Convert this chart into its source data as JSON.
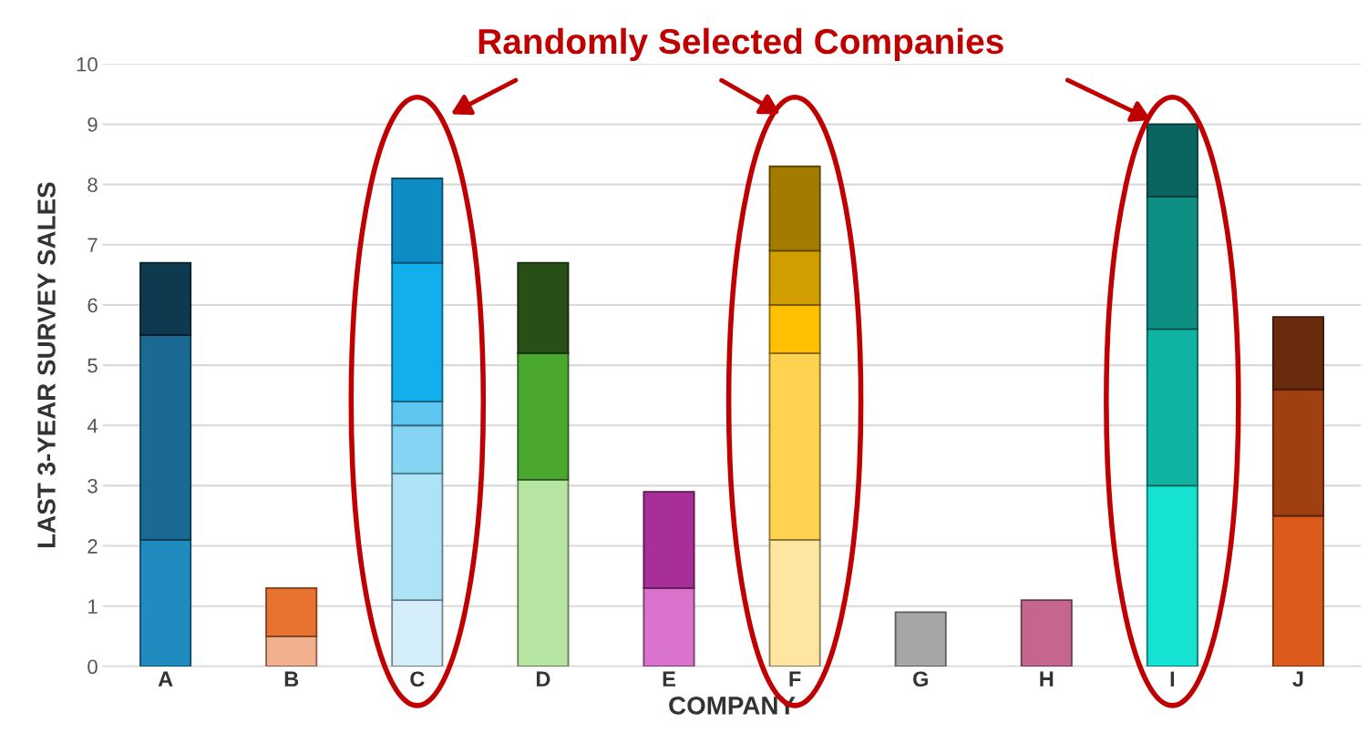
{
  "chart_data": {
    "type": "bar",
    "stacked": true,
    "xlabel": "COMPANY",
    "ylabel": "LAST 3-YEAR SURVEY SALES",
    "annotations": [
      "Randomly Selected Companies"
    ],
    "categories": [
      "A",
      "B",
      "C",
      "D",
      "E",
      "F",
      "G",
      "H",
      "I",
      "J"
    ],
    "ylim": [
      0,
      10
    ],
    "yticks": [
      0,
      1,
      2,
      3,
      4,
      5,
      6,
      7,
      8,
      9,
      10
    ],
    "grid": "y",
    "legend": false,
    "series": [
      {
        "values": [
          2.1,
          0.5,
          1.1,
          3.1,
          1.3,
          2.1,
          0.9,
          1.1,
          3.0,
          2.5
        ],
        "colors": [
          "#1f8bbf",
          "#f2b08f",
          "#d4eefa",
          "#b5e5a0",
          "#da73cb",
          "#fee6a0",
          "#a6a6a6",
          "#c4668d",
          "#16e2d2",
          "#db5a1c"
        ]
      },
      {
        "values": [
          3.4,
          0.8,
          2.1,
          2.1,
          1.6,
          3.1,
          null,
          null,
          2.6,
          2.1
        ],
        "colors": [
          "#1a6a93",
          "#e87330",
          "#aee2f7",
          "#4ba82f",
          "#a82f98",
          "#ffd350",
          null,
          null,
          "#10b2a2",
          "#a04010"
        ]
      },
      {
        "values": [
          1.2,
          null,
          0.8,
          1.5,
          null,
          0.8,
          null,
          null,
          2.2,
          1.2
        ],
        "colors": [
          "#0d3a4f",
          null,
          "#86d4f3",
          "#284f16",
          null,
          "#ffc000",
          null,
          null,
          "#0e8f84",
          "#6a2a0c"
        ]
      },
      {
        "values": [
          null,
          null,
          0.4,
          null,
          null,
          0.9,
          null,
          null,
          1.2,
          null
        ],
        "colors": [
          null,
          null,
          "#5cc6f0",
          null,
          null,
          "#d39e00",
          null,
          null,
          "#0a6560",
          null
        ]
      },
      {
        "values": [
          null,
          null,
          2.3,
          null,
          null,
          1.4,
          null,
          null,
          null,
          null
        ],
        "colors": [
          null,
          null,
          "#13aeec",
          null,
          null,
          "#a37b00",
          null,
          null,
          null,
          null
        ]
      },
      {
        "values": [
          null,
          null,
          1.4,
          null,
          null,
          null,
          null,
          null,
          null,
          null
        ],
        "colors": [
          null,
          null,
          "#0e8cc4",
          null,
          null,
          null,
          null,
          null,
          null,
          null
        ]
      }
    ]
  }
}
